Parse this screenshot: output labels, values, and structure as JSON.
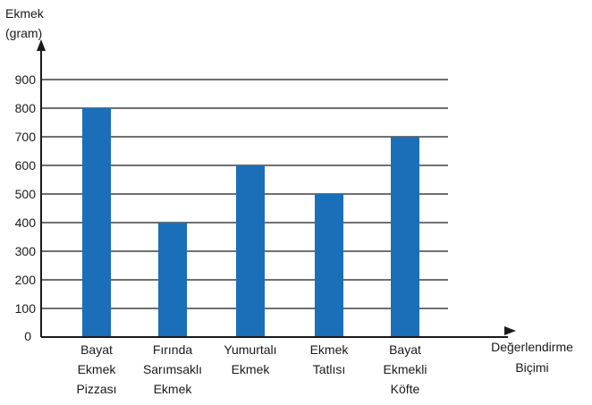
{
  "chart_data": {
    "type": "bar",
    "ylabel_lines": [
      "Ekmek",
      "(gram)"
    ],
    "xlabel_lines": [
      "Değerlendirme",
      "Biçimi"
    ],
    "ylim": [
      0,
      900
    ],
    "yticks": [
      0,
      100,
      200,
      300,
      400,
      500,
      600,
      700,
      800,
      900
    ],
    "grid": true,
    "categories": [
      [
        "Bayat",
        "Ekmek",
        "Pizzası"
      ],
      [
        "Fırında",
        "Sarımsaklı",
        "Ekmek"
      ],
      [
        "Yumurtalı",
        "Ekmek"
      ],
      [
        "Ekmek",
        "Tatlısı"
      ],
      [
        "Bayat",
        "Ekmekli",
        "Köfte"
      ]
    ],
    "values": [
      800,
      400,
      600,
      500,
      700
    ],
    "bar_color": "#1a6fb8",
    "grid_color": "#1a1a1a"
  }
}
